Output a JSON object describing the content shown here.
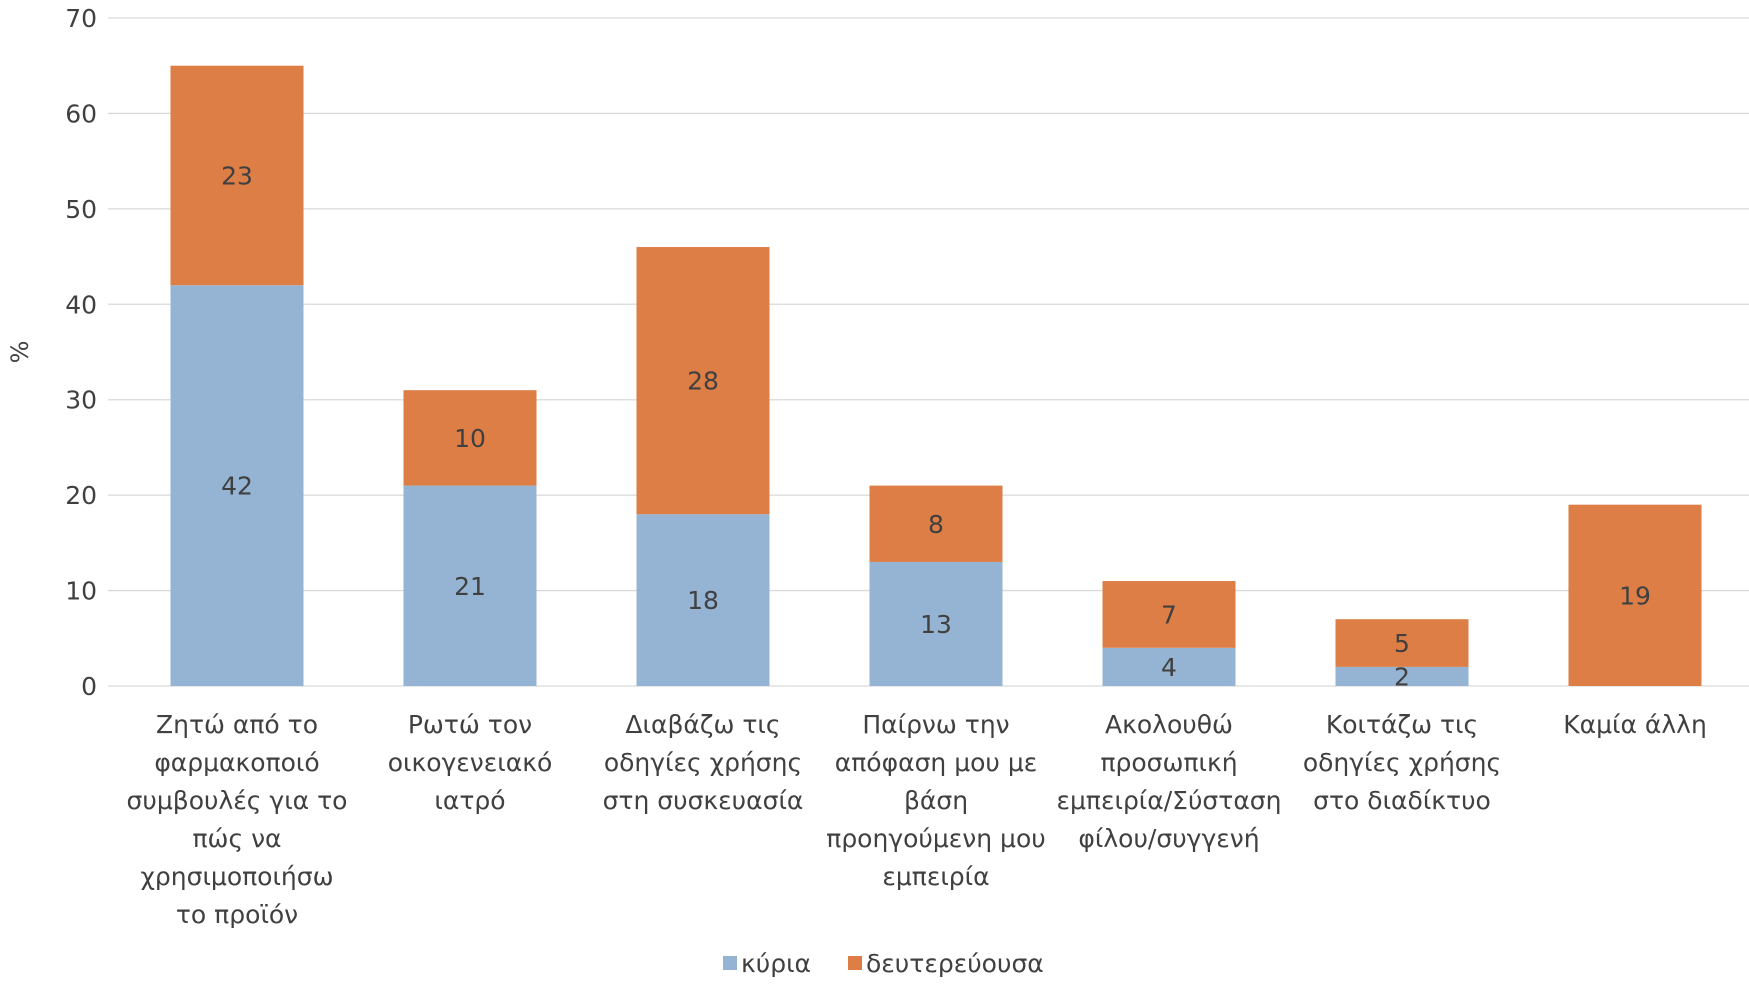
{
  "chart_data": {
    "type": "bar",
    "stacked": true,
    "ylabel": "%",
    "xlabel": "",
    "ylim": [
      0,
      70
    ],
    "yticks": [
      0,
      10,
      20,
      30,
      40,
      50,
      60,
      70
    ],
    "grid": true,
    "legend_position": "bottom",
    "categories": [
      [
        "Ζητώ από το",
        "φαρμακοποιό",
        "συμβουλές για το",
        "πώς να",
        "χρησιμοποιήσω",
        "το προϊόν"
      ],
      [
        "Ρωτώ τον",
        "οικογενειακό",
        "ιατρό"
      ],
      [
        "Διαβάζω τις",
        "οδηγίες χρήσης",
        "στη συσκευασία"
      ],
      [
        "Παίρνω την",
        "απόφαση μου με",
        "βάση",
        "προηγούμενη μου",
        "εμπειρία"
      ],
      [
        "Ακολουθώ",
        "προσωπική",
        "εμπειρία/Σύσταση",
        "φίλου/συγγενή"
      ],
      [
        "Κοιτάζω τις",
        "οδηγίες χρήσης",
        "στο διαδίκτυο"
      ],
      [
        "Καμία άλλη"
      ]
    ],
    "series": [
      {
        "name": "κύρια",
        "color": "#95B3D2",
        "values": [
          42,
          21,
          18,
          13,
          4,
          2,
          null
        ]
      },
      {
        "name": "δευτερεύουσα",
        "color": "#DD7E46",
        "values": [
          23,
          10,
          28,
          8,
          7,
          5,
          19
        ]
      }
    ]
  }
}
